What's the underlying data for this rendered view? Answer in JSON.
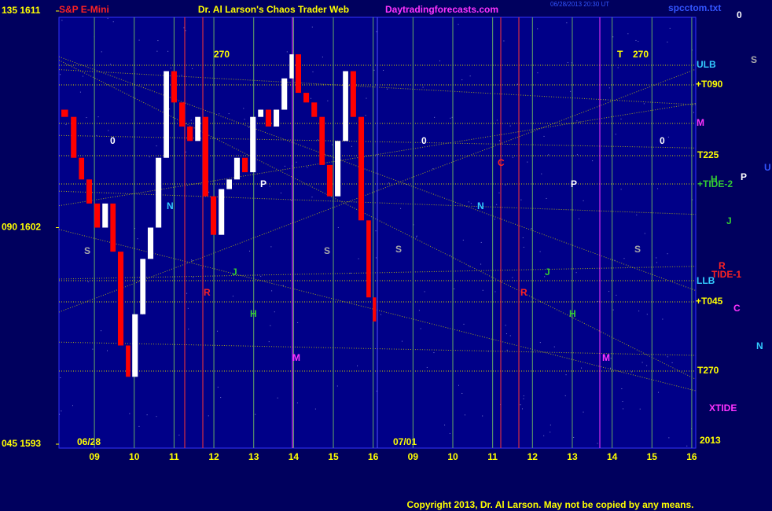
{
  "chart_data": {
    "type": "price",
    "title": "Dr. Al Larson's Chaos Trader Web",
    "instrument": "S&P E-Mini",
    "site": "Daytradingforecasts.com",
    "timestamp": "06/28/2013 20:30 UT",
    "file": "spcctom.txt",
    "footer": "Copyright 2013, Dr. Al Larson. May not be copied by any means.",
    "dates": [
      "06/28",
      "07/01"
    ],
    "year": "2013",
    "grid": true,
    "ylim": [
      1593,
      1611
    ],
    "yticks": [
      {
        "value": 1611,
        "label": "135 1611"
      },
      {
        "value": 1602,
        "label": "090 1602"
      },
      {
        "value": 1593,
        "label": "045 1593"
      }
    ],
    "xlim": [
      0.11,
      16.1
    ],
    "xticks": [
      {
        "value": 1,
        "label": "09"
      },
      {
        "value": 2,
        "label": "10"
      },
      {
        "value": 3,
        "label": "11"
      },
      {
        "value": 4,
        "label": "12"
      },
      {
        "value": 5,
        "label": "13"
      },
      {
        "value": 6,
        "label": "14"
      },
      {
        "value": 7,
        "label": "15"
      },
      {
        "value": 8,
        "label": "16"
      },
      {
        "value": 9,
        "label": "09"
      },
      {
        "value": 10,
        "label": "10"
      },
      {
        "value": 11,
        "label": "11"
      },
      {
        "value": 12,
        "label": "12"
      },
      {
        "value": 13,
        "label": "13"
      },
      {
        "value": 14,
        "label": "14"
      },
      {
        "value": 15,
        "label": "15"
      },
      {
        "value": 16,
        "label": "16"
      }
    ],
    "series": [
      {
        "name": "S&P E-Mini",
        "up_color": "#ffffff",
        "down_color": "#ff0000",
        "x": [
          0.17,
          0.41,
          0.61,
          0.8,
          1.0,
          1.2,
          1.4,
          1.59,
          1.79,
          1.95,
          2.15,
          2.34,
          2.54,
          2.74,
          2.93,
          3.13,
          3.33,
          3.53,
          3.72,
          3.92,
          4.12,
          4.32,
          4.51,
          4.71,
          4.91,
          5.11,
          5.3,
          5.5,
          5.7,
          5.9,
          6.05,
          6.25,
          6.45,
          6.65,
          6.84,
          7.04,
          7.24,
          7.43,
          7.63,
          7.83,
          7.99,
          8.11
        ],
        "values": [
          1606.9,
          1606.6,
          1604.9,
          1604,
          1603,
          1602,
          1603,
          1601,
          1597.1,
          1595.8,
          1598.4,
          1600.7,
          1602,
          1604.9,
          1608.5,
          1607.2,
          1606.2,
          1605.6,
          1606.6,
          1603.3,
          1601.7,
          1603.6,
          1604,
          1604.9,
          1604.3,
          1606.6,
          1606.9,
          1606.2,
          1606.9,
          1608.2,
          1609.2,
          1607.6,
          1607.2,
          1606.6,
          1604.6,
          1603.3,
          1605.6,
          1608.5,
          1606.6,
          1602.3,
          1599.1,
          1598.1
        ]
      }
    ],
    "annotations": [
      {
        "text": "0",
        "color": "#ffffff"
      },
      {
        "text": "ULB",
        "color": "#33ccff"
      },
      {
        "text": "S",
        "color": "#aaaaaa"
      },
      {
        "text": "+T090",
        "color": "#ffff00"
      },
      {
        "text": "M",
        "color": "#ff33ff"
      },
      {
        "text": "T225",
        "color": "#ffff00"
      },
      {
        "text": "U",
        "color": "#3355ff"
      },
      {
        "text": "H",
        "color": "#33cc33"
      },
      {
        "text": "+TIDE-2",
        "color": "#33cc33"
      },
      {
        "text": "P",
        "color": "#ffffff"
      },
      {
        "text": "J",
        "color": "#33cc33"
      },
      {
        "text": "R",
        "color": "#ff2222"
      },
      {
        "text": "TIDE-1",
        "color": "#ff2222"
      },
      {
        "text": "LLB",
        "color": "#33ccff"
      },
      {
        "text": "+T045",
        "color": "#ffff00"
      },
      {
        "text": "C",
        "color": "#ff33ff"
      },
      {
        "text": "N",
        "color": "#33ccff"
      },
      {
        "text": "T270",
        "color": "#ffff00"
      },
      {
        "text": "XTIDE",
        "color": "#ff33ff"
      },
      {
        "text": "270",
        "color": "#ffff00"
      },
      {
        "text": "T",
        "color": "#ffff00"
      },
      {
        "text": "270",
        "color": "#ffff00"
      },
      {
        "text": "0",
        "color": "#ffffff"
      },
      {
        "text": "N",
        "color": "#33ccff"
      },
      {
        "text": "S",
        "color": "#aaaaaa"
      },
      {
        "text": "J",
        "color": "#33cc33"
      },
      {
        "text": "R",
        "color": "#ff2222"
      },
      {
        "text": "H",
        "color": "#33cc33"
      },
      {
        "text": "M",
        "color": "#ff33ff"
      },
      {
        "text": "P",
        "color": "#ffffff"
      },
      {
        "text": "S",
        "color": "#aaaaaa"
      },
      {
        "text": "0",
        "color": "#ffffff"
      },
      {
        "text": "N",
        "color": "#33ccff"
      },
      {
        "text": "S",
        "color": "#aaaaaa"
      },
      {
        "text": "J",
        "color": "#33cc33"
      },
      {
        "text": "R",
        "color": "#ff2222"
      },
      {
        "text": "H",
        "color": "#33cc33"
      },
      {
        "text": "M",
        "color": "#ff33ff"
      },
      {
        "text": "P",
        "color": "#ffffff"
      },
      {
        "text": "S",
        "color": "#aaaaaa"
      },
      {
        "text": "0",
        "color": "#ffffff"
      },
      {
        "text": "C",
        "color": "#ff2222"
      }
    ]
  }
}
